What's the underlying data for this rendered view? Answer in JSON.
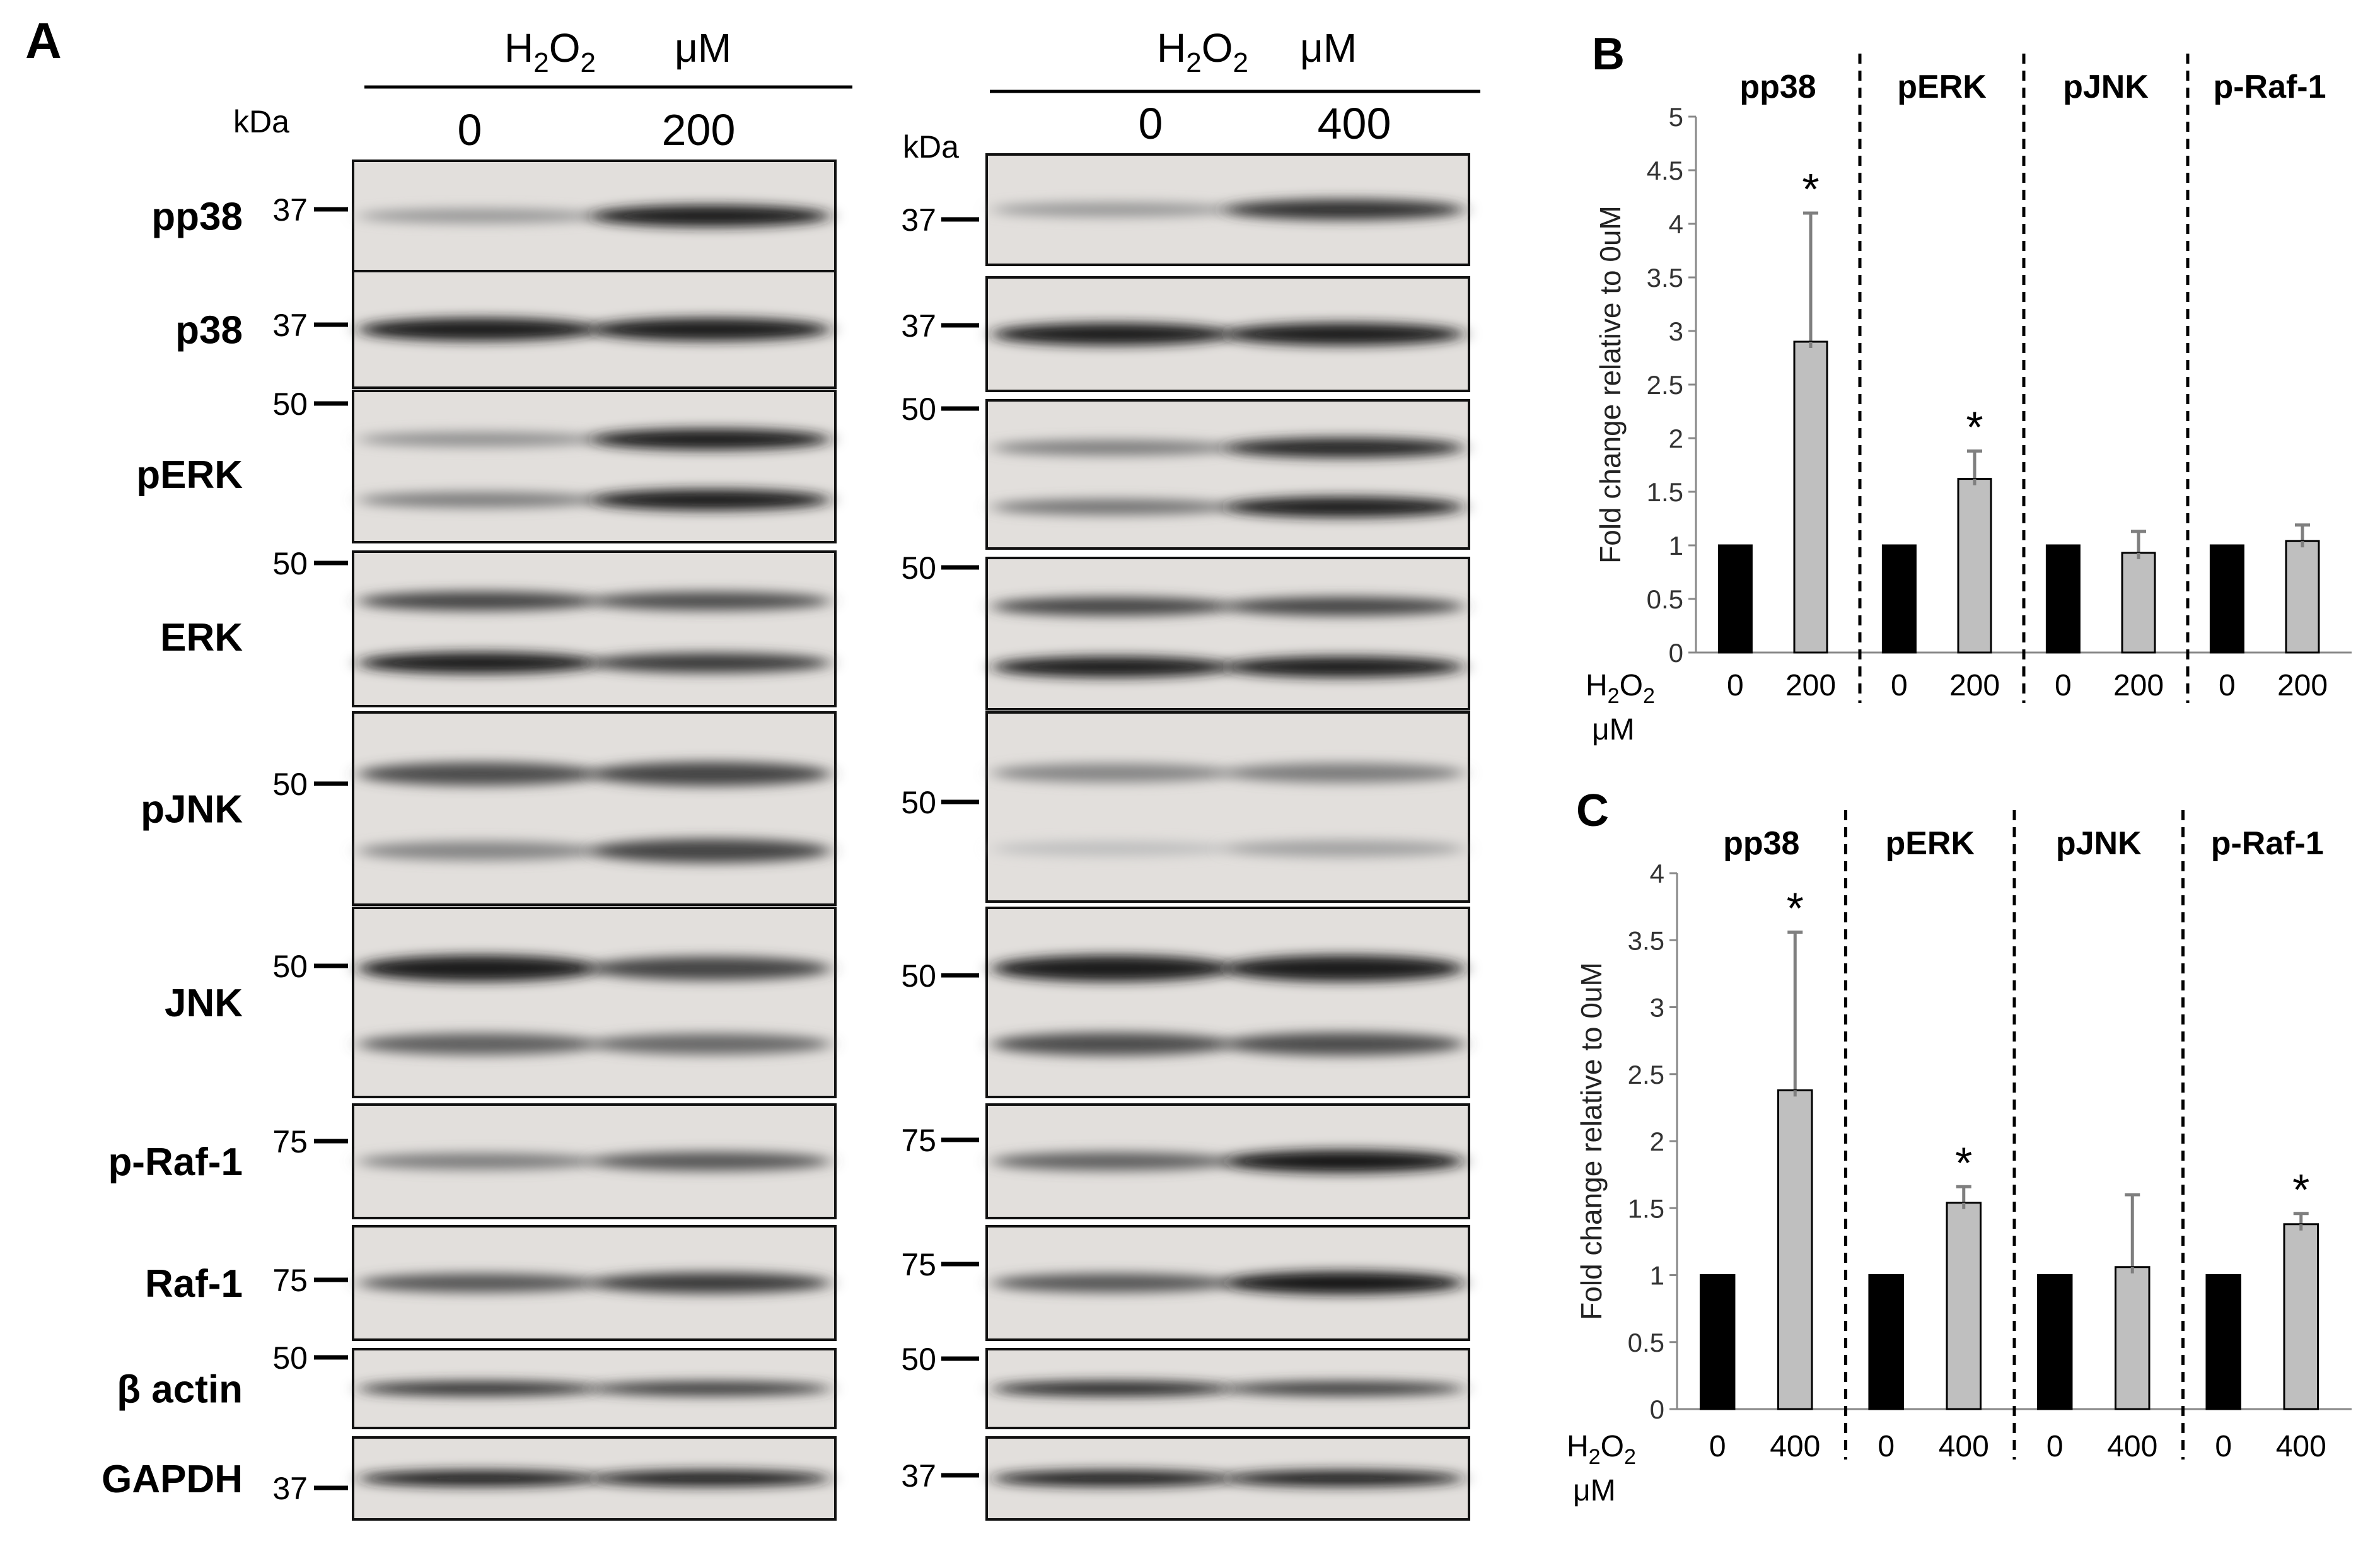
{
  "panels": {
    "A": "A",
    "B": "B",
    "C": "C"
  },
  "western_blot": {
    "kda_label": "kDa",
    "blots": [
      {
        "header_main": "H",
        "header_sub2": "2",
        "header_o": "O",
        "header_sub2b": "2",
        "header_unit": "μM",
        "lanes": [
          "0",
          "200"
        ],
        "rows": [
          {
            "label": "pp38",
            "marker": "37",
            "bands": [
              [
                0.3,
                0.95
              ]
            ]
          },
          {
            "label": "p38",
            "marker": "37",
            "bands": [
              [
                0.95,
                0.95
              ]
            ]
          },
          {
            "label": "pERK",
            "marker": "50",
            "bands": [
              [
                0.35,
                0.95
              ],
              [
                0.45,
                0.95
              ]
            ]
          },
          {
            "label": "ERK",
            "marker": "50",
            "bands": [
              [
                0.75,
                0.7
              ],
              [
                0.95,
                0.8
              ]
            ]
          },
          {
            "label": "pJNK",
            "marker": "50",
            "bands": [
              [
                0.7,
                0.75
              ],
              [
                0.4,
                0.75
              ]
            ]
          },
          {
            "label": "JNK",
            "marker": "50",
            "bands": [
              [
                0.95,
                0.75
              ],
              [
                0.6,
                0.55
              ]
            ]
          },
          {
            "label": "p-Raf-1",
            "marker": "75",
            "bands": [
              [
                0.45,
                0.65
              ]
            ]
          },
          {
            "label": "Raf-1",
            "marker": "75",
            "bands": [
              [
                0.65,
                0.8
              ]
            ]
          },
          {
            "label": "β actin",
            "marker": "50",
            "bands": [
              [
                0.85,
                0.8
              ]
            ]
          },
          {
            "label": "GAPDH",
            "marker": "37",
            "bands": [
              [
                0.95,
                0.95
              ]
            ]
          }
        ]
      },
      {
        "header_main": "H",
        "header_sub2": "2",
        "header_o": "O",
        "header_sub2b": "2",
        "header_unit": "μM",
        "lanes": [
          "0",
          "400"
        ],
        "rows": [
          {
            "marker": "37",
            "bands": [
              [
                0.3,
                0.85
              ]
            ]
          },
          {
            "marker": "37",
            "bands": [
              [
                0.95,
                0.95
              ]
            ]
          },
          {
            "marker": "50",
            "bands": [
              [
                0.45,
                0.9
              ],
              [
                0.5,
                0.95
              ]
            ]
          },
          {
            "marker": "50",
            "bands": [
              [
                0.75,
                0.75
              ],
              [
                0.95,
                0.95
              ]
            ]
          },
          {
            "marker": "50",
            "bands": [
              [
                0.4,
                0.45
              ],
              [
                0.1,
                0.25
              ]
            ]
          },
          {
            "marker": "50",
            "bands": [
              [
                0.95,
                0.95
              ],
              [
                0.7,
                0.7
              ]
            ]
          },
          {
            "marker": "75",
            "bands": [
              [
                0.6,
                0.98
              ]
            ]
          },
          {
            "marker": "75",
            "bands": [
              [
                0.65,
                0.98
              ]
            ]
          },
          {
            "marker": "50",
            "bands": [
              [
                0.9,
                0.8
              ]
            ]
          },
          {
            "marker": "37",
            "bands": [
              [
                0.95,
                0.95
              ]
            ]
          }
        ]
      }
    ]
  },
  "chart_data": [
    {
      "panel": "B",
      "type": "bar",
      "ylabel": "Fold change  relative  to 0uM",
      "ylim": [
        0,
        5
      ],
      "yticks": [
        "0",
        "0.5",
        "1",
        "1.5",
        "2",
        "2.5",
        "3",
        "3.5",
        "4",
        "4.5",
        "5"
      ],
      "groups": [
        "pp38",
        "pERK",
        "pJNK",
        "p-Raf-1"
      ],
      "categories": [
        "0",
        "200",
        "0",
        "200",
        "0",
        "200",
        "0",
        "200"
      ],
      "values": [
        1.0,
        2.9,
        1.0,
        1.62,
        1.0,
        0.93,
        1.0,
        1.04
      ],
      "errors": [
        0.02,
        1.2,
        0.02,
        0.26,
        0.02,
        0.2,
        0.02,
        0.15
      ],
      "significant": [
        false,
        true,
        false,
        true,
        false,
        false,
        false,
        false
      ],
      "significance_mark": "*",
      "bar_colors": [
        "#000000",
        "#bfbfbf"
      ],
      "x_axis_label_main": "H",
      "x_axis_label_sub": "2",
      "x_axis_label_o": "O",
      "x_axis_label_sub2": "2",
      "x_axis_unit": "μM"
    },
    {
      "panel": "C",
      "type": "bar",
      "ylabel": "Fold change  relative  to 0uM",
      "ylim": [
        0,
        4
      ],
      "yticks": [
        "0",
        "0.5",
        "1",
        "1.5",
        "2",
        "2.5",
        "3",
        "3.5",
        "4"
      ],
      "groups": [
        "pp38",
        "pERK",
        "pJNK",
        "p-Raf-1"
      ],
      "categories": [
        "0",
        "400",
        "0",
        "400",
        "0",
        "400",
        "0",
        "400"
      ],
      "values": [
        1.0,
        2.38,
        1.0,
        1.54,
        1.0,
        1.06,
        1.0,
        1.38
      ],
      "errors": [
        0.01,
        1.18,
        0.01,
        0.12,
        0.01,
        0.54,
        0.01,
        0.08
      ],
      "significant": [
        false,
        true,
        false,
        true,
        false,
        false,
        false,
        true
      ],
      "significance_mark": "*",
      "bar_colors": [
        "#000000",
        "#bfbfbf"
      ],
      "x_axis_label_main": "H",
      "x_axis_label_sub": "2",
      "x_axis_label_o": "O",
      "x_axis_label_sub2": "2",
      "x_axis_unit": "μM"
    }
  ]
}
